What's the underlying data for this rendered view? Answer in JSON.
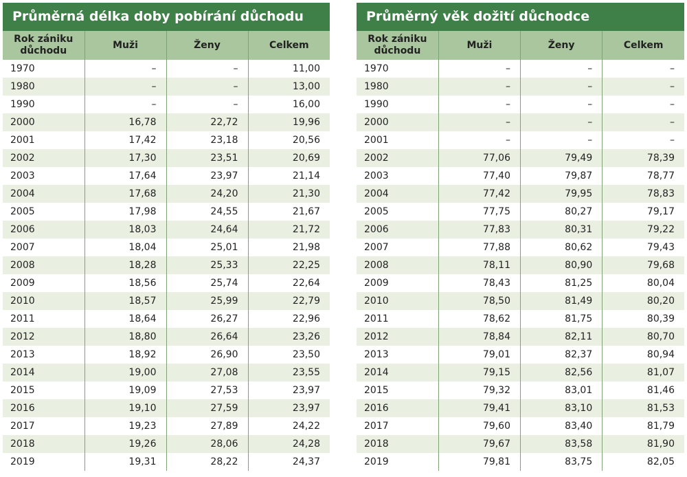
{
  "left": {
    "title": "Průměrná délka doby pobírání důchodu",
    "headers": [
      "Rok zániku důchodu",
      "Muži",
      "Ženy",
      "Celkem"
    ],
    "rows": [
      [
        "1970",
        "–",
        "–",
        "11,00"
      ],
      [
        "1980",
        "–",
        "–",
        "13,00"
      ],
      [
        "1990",
        "–",
        "–",
        "16,00"
      ],
      [
        "2000",
        "16,78",
        "22,72",
        "19,96"
      ],
      [
        "2001",
        "17,42",
        "23,18",
        "20,56"
      ],
      [
        "2002",
        "17,30",
        "23,51",
        "20,69"
      ],
      [
        "2003",
        "17,64",
        "23,97",
        "21,14"
      ],
      [
        "2004",
        "17,68",
        "24,20",
        "21,30"
      ],
      [
        "2005",
        "17,98",
        "24,55",
        "21,67"
      ],
      [
        "2006",
        "18,03",
        "24,64",
        "21,72"
      ],
      [
        "2007",
        "18,04",
        "25,01",
        "21,98"
      ],
      [
        "2008",
        "18,28",
        "25,33",
        "22,25"
      ],
      [
        "2009",
        "18,56",
        "25,74",
        "22,64"
      ],
      [
        "2010",
        "18,57",
        "25,99",
        "22,79"
      ],
      [
        "2011",
        "18,64",
        "26,27",
        "22,96"
      ],
      [
        "2012",
        "18,80",
        "26,64",
        "23,26"
      ],
      [
        "2013",
        "18,92",
        "26,90",
        "23,50"
      ],
      [
        "2014",
        "19,00",
        "27,08",
        "23,55"
      ],
      [
        "2015",
        "19,09",
        "27,53",
        "23,97"
      ],
      [
        "2016",
        "19,10",
        "27,59",
        "23,97"
      ],
      [
        "2017",
        "19,23",
        "27,89",
        "24,22"
      ],
      [
        "2018",
        "19,26",
        "28,06",
        "24,28"
      ],
      [
        "2019",
        "19,31",
        "28,22",
        "24,37"
      ]
    ]
  },
  "right": {
    "title": "Průměrný věk dožití důchodce",
    "headers": [
      "Rok zániku důchodu",
      "Muži",
      "Ženy",
      "Celkem"
    ],
    "rows": [
      [
        "1970",
        "–",
        "–",
        "–"
      ],
      [
        "1980",
        "–",
        "–",
        "–"
      ],
      [
        "1990",
        "–",
        "–",
        "–"
      ],
      [
        "2000",
        "–",
        "–",
        "–"
      ],
      [
        "2001",
        "–",
        "–",
        "–"
      ],
      [
        "2002",
        "77,06",
        "79,49",
        "78,39"
      ],
      [
        "2003",
        "77,40",
        "79,87",
        "78,77"
      ],
      [
        "2004",
        "77,42",
        "79,95",
        "78,83"
      ],
      [
        "2005",
        "77,75",
        "80,27",
        "79,17"
      ],
      [
        "2006",
        "77,83",
        "80,31",
        "79,22"
      ],
      [
        "2007",
        "77,88",
        "80,62",
        "79,43"
      ],
      [
        "2008",
        "78,11",
        "80,90",
        "79,68"
      ],
      [
        "2009",
        "78,43",
        "81,25",
        "80,04"
      ],
      [
        "2010",
        "78,50",
        "81,49",
        "80,20"
      ],
      [
        "2011",
        "78,62",
        "81,75",
        "80,39"
      ],
      [
        "2012",
        "78,84",
        "82,11",
        "80,70"
      ],
      [
        "2013",
        "79,01",
        "82,37",
        "80,94"
      ],
      [
        "2014",
        "79,15",
        "82,56",
        "81,07"
      ],
      [
        "2015",
        "79,32",
        "83,01",
        "81,46"
      ],
      [
        "2016",
        "79,41",
        "83,10",
        "81,53"
      ],
      [
        "2017",
        "79,60",
        "83,40",
        "81,79"
      ],
      [
        "2018",
        "79,67",
        "83,58",
        "81,90"
      ],
      [
        "2019",
        "79,81",
        "83,75",
        "82,05"
      ]
    ]
  }
}
